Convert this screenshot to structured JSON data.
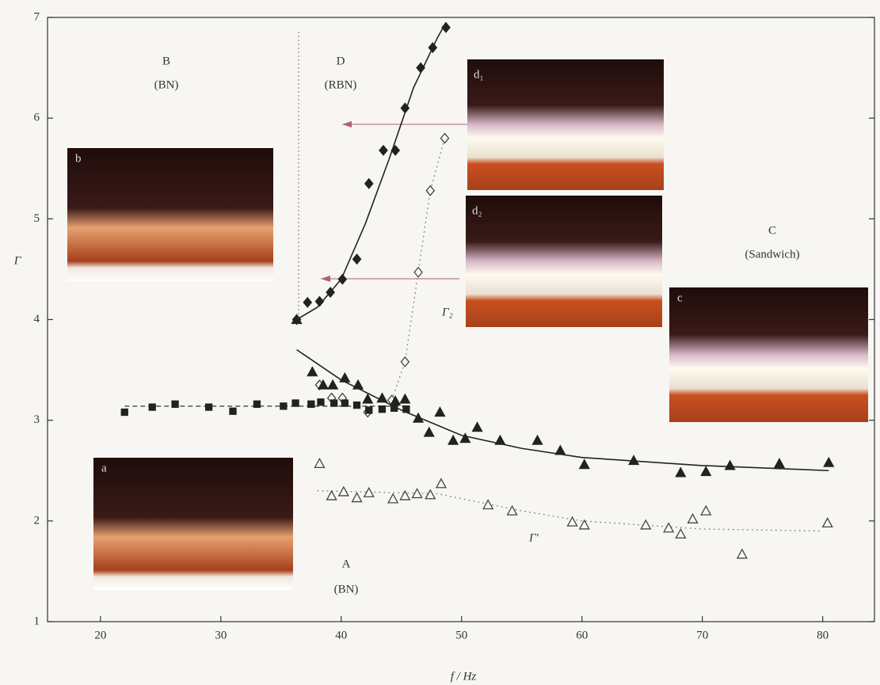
{
  "chart_data": {
    "type": "scatter",
    "xlabel": "f / Hz",
    "ylabel": "Γ",
    "xlim": [
      15.6,
      84.3
    ],
    "ylim": [
      1,
      7
    ],
    "xticks": [
      20,
      30,
      40,
      50,
      60,
      70,
      80
    ],
    "yticks": [
      1,
      2,
      3,
      4,
      5,
      6,
      7
    ],
    "series": [
      {
        "marker": "diamond",
        "filled": true,
        "color": "#222",
        "x": [
          36.3,
          37.2,
          38.2,
          39.1,
          40.1,
          41.3,
          42.3,
          43.5,
          44.5,
          45.3,
          46.6,
          47.6,
          48.7
        ],
        "values": [
          4.0,
          4.17,
          4.18,
          4.27,
          4.4,
          4.6,
          5.35,
          5.68,
          5.68,
          6.1,
          6.5,
          6.7,
          6.9
        ]
      },
      {
        "marker": "diamond",
        "filled": false,
        "color": "#444",
        "x": [
          38.2,
          39.2,
          40.1,
          42.2,
          44.2,
          45.3,
          46.4,
          47.4,
          48.6
        ],
        "values": [
          3.35,
          3.22,
          3.22,
          3.08,
          3.2,
          3.58,
          4.47,
          5.28,
          5.8
        ]
      },
      {
        "marker": "square",
        "filled": true,
        "color": "#222",
        "x": [
          22,
          24.3,
          26.2,
          29,
          31,
          33,
          35.2,
          36.2,
          37.5,
          38.3,
          39.4,
          40.3,
          41.3,
          42.3,
          43.4,
          44.4,
          45.4
        ],
        "values": [
          3.08,
          3.13,
          3.16,
          3.13,
          3.09,
          3.16,
          3.14,
          3.17,
          3.16,
          3.18,
          3.17,
          3.17,
          3.15,
          3.1,
          3.11,
          3.12,
          3.11
        ]
      },
      {
        "marker": "triangle",
        "filled": true,
        "color": "#222",
        "x": [
          36.3,
          37.6,
          38.5,
          39.3,
          40.3,
          41.4,
          42.2,
          43.4,
          44.5,
          45.3,
          46.4,
          47.3,
          48.2,
          49.3,
          50.3,
          51.3,
          53.2,
          56.3,
          58.2,
          60.2,
          64.3,
          68.2,
          70.3,
          72.3,
          76.4,
          80.5
        ],
        "values": [
          4.0,
          3.48,
          3.35,
          3.35,
          3.42,
          3.35,
          3.21,
          3.22,
          3.19,
          3.21,
          3.02,
          2.88,
          3.08,
          2.8,
          2.82,
          2.93,
          2.8,
          2.8,
          2.7,
          2.56,
          2.6,
          2.48,
          2.49,
          2.55,
          2.57,
          2.58
        ]
      },
      {
        "marker": "triangle",
        "filled": false,
        "color": "#444",
        "x": [
          38.2,
          39.2,
          40.2,
          41.3,
          42.3,
          44.3,
          45.3,
          46.3,
          47.4,
          48.3,
          52.2,
          54.2,
          59.2,
          60.2,
          65.3,
          67.2,
          68.2,
          69.2,
          70.3,
          73.3,
          80.4
        ],
        "values": [
          2.57,
          2.25,
          2.29,
          2.23,
          2.28,
          2.22,
          2.25,
          2.27,
          2.26,
          2.37,
          2.16,
          2.1,
          1.99,
          1.96,
          1.96,
          1.93,
          1.87,
          2.02,
          2.1,
          1.67,
          1.98
        ]
      }
    ],
    "fit_lines": [
      {
        "style": "solid",
        "color": "#222",
        "x": [
          36.3,
          38,
          40,
          42,
          44,
          46,
          48,
          48.7
        ],
        "values": [
          4.0,
          4.12,
          4.4,
          4.95,
          5.6,
          6.3,
          6.8,
          6.95
        ]
      },
      {
        "style": "solid",
        "color": "#222",
        "x": [
          36.3,
          40,
          45,
          50,
          55,
          60,
          70,
          80.5
        ],
        "values": [
          3.7,
          3.4,
          3.1,
          2.85,
          2.72,
          2.63,
          2.55,
          2.5
        ]
      },
      {
        "style": "dashed",
        "color": "#333",
        "x": [
          22,
          45.4
        ],
        "values": [
          3.14,
          3.14
        ]
      },
      {
        "style": "dotted",
        "color": "#888",
        "x": [
          44.2,
          45.3,
          46.4,
          47.4,
          48.6
        ],
        "values": [
          3.2,
          3.58,
          4.47,
          5.28,
          5.8
        ]
      },
      {
        "style": "dotted",
        "color": "#888",
        "x": [
          38,
          48,
          55,
          60,
          70,
          80
        ],
        "values": [
          2.3,
          2.27,
          2.1,
          2.0,
          1.92,
          1.9
        ]
      }
    ],
    "regions": [
      "B",
      "(BN)",
      "D",
      "(RBN)",
      "C",
      "(Sandwich)",
      "A",
      "(BN)"
    ],
    "curve_labels": [
      "Γ₂",
      "Γ′"
    ],
    "insets": [
      "a",
      "b",
      "c",
      "d₁",
      "d₂"
    ]
  }
}
